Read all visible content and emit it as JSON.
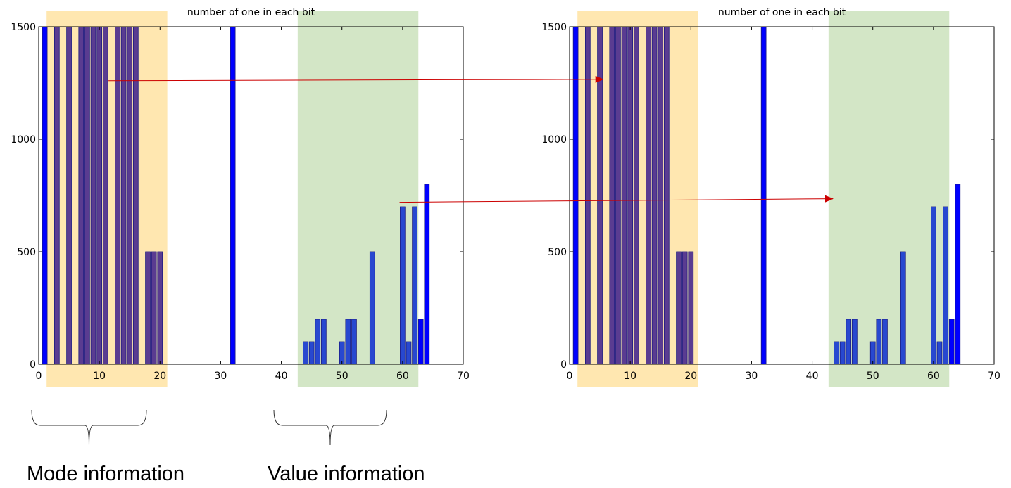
{
  "colors": {
    "bar_plain": "#0000ff",
    "bar_in_mode_region": "#5a3c91",
    "bar_in_value_region": "#2848d0",
    "mode_region": "#ffe7b0",
    "value_region": "#d3e6c6",
    "arrow": "#cc0000"
  },
  "captions": {
    "mode": "Mode information",
    "value": "Value information"
  },
  "chart_data": [
    {
      "type": "bar",
      "title": "number of one in each bit",
      "xlabel": "",
      "ylabel": "",
      "xlim": [
        0,
        70
      ],
      "ylim": [
        0,
        1500
      ],
      "xticks": [
        "0",
        "10",
        "20",
        "30",
        "40",
        "50",
        "60",
        "70"
      ],
      "yticks": [
        "0",
        "500",
        "1000",
        "1500"
      ],
      "grid": false,
      "highlight_regions": [
        {
          "label": "Mode information",
          "x_from": 1.3,
          "x_to": 21.2,
          "color": "mode_region"
        },
        {
          "label": "Value information",
          "x_from": 42.7,
          "x_to": 62.6,
          "color": "value_region"
        }
      ],
      "x": [
        1,
        3,
        5,
        7,
        8,
        9,
        10,
        11,
        13,
        14,
        15,
        16,
        18,
        19,
        20,
        32,
        44,
        45,
        46,
        47,
        50,
        51,
        52,
        55,
        60,
        61,
        62,
        63,
        64
      ],
      "values": [
        1500,
        1500,
        1500,
        1500,
        1500,
        1500,
        1500,
        1500,
        1500,
        1500,
        1500,
        1500,
        500,
        500,
        500,
        1500,
        100,
        100,
        200,
        200,
        100,
        200,
        200,
        500,
        700,
        100,
        700,
        200,
        800
      ]
    },
    {
      "type": "bar",
      "title": "number of one in each bit",
      "xlabel": "",
      "ylabel": "",
      "xlim": [
        0,
        70
      ],
      "ylim": [
        0,
        1500
      ],
      "xticks": [
        "0",
        "10",
        "20",
        "30",
        "40",
        "50",
        "60",
        "70"
      ],
      "yticks": [
        "0",
        "500",
        "1000",
        "1500"
      ],
      "grid": false,
      "highlight_regions": [
        {
          "label": "Mode information",
          "x_from": 1.3,
          "x_to": 21.2,
          "color": "mode_region"
        },
        {
          "label": "Value information",
          "x_from": 42.7,
          "x_to": 62.6,
          "color": "value_region"
        }
      ],
      "x": [
        1,
        3,
        5,
        7,
        8,
        9,
        10,
        11,
        13,
        14,
        15,
        16,
        18,
        19,
        20,
        32,
        44,
        45,
        46,
        47,
        50,
        51,
        52,
        55,
        60,
        61,
        62,
        63,
        64
      ],
      "values": [
        1500,
        1500,
        1500,
        1500,
        1500,
        1500,
        1500,
        1500,
        1500,
        1500,
        1500,
        1500,
        500,
        500,
        500,
        1500,
        100,
        100,
        200,
        200,
        100,
        200,
        200,
        500,
        700,
        100,
        700,
        200,
        800
      ]
    }
  ],
  "arrows": [
    {
      "from_chart": 0,
      "to_chart": 1,
      "x_from": 11.5,
      "y_from": 1260,
      "x_to": 12.5,
      "y_to": 1260
    },
    {
      "from_chart": 0,
      "to_chart": 1,
      "x_from": 59.5,
      "y_from": 720,
      "x_to": 58.5,
      "y_to": 720
    }
  ]
}
